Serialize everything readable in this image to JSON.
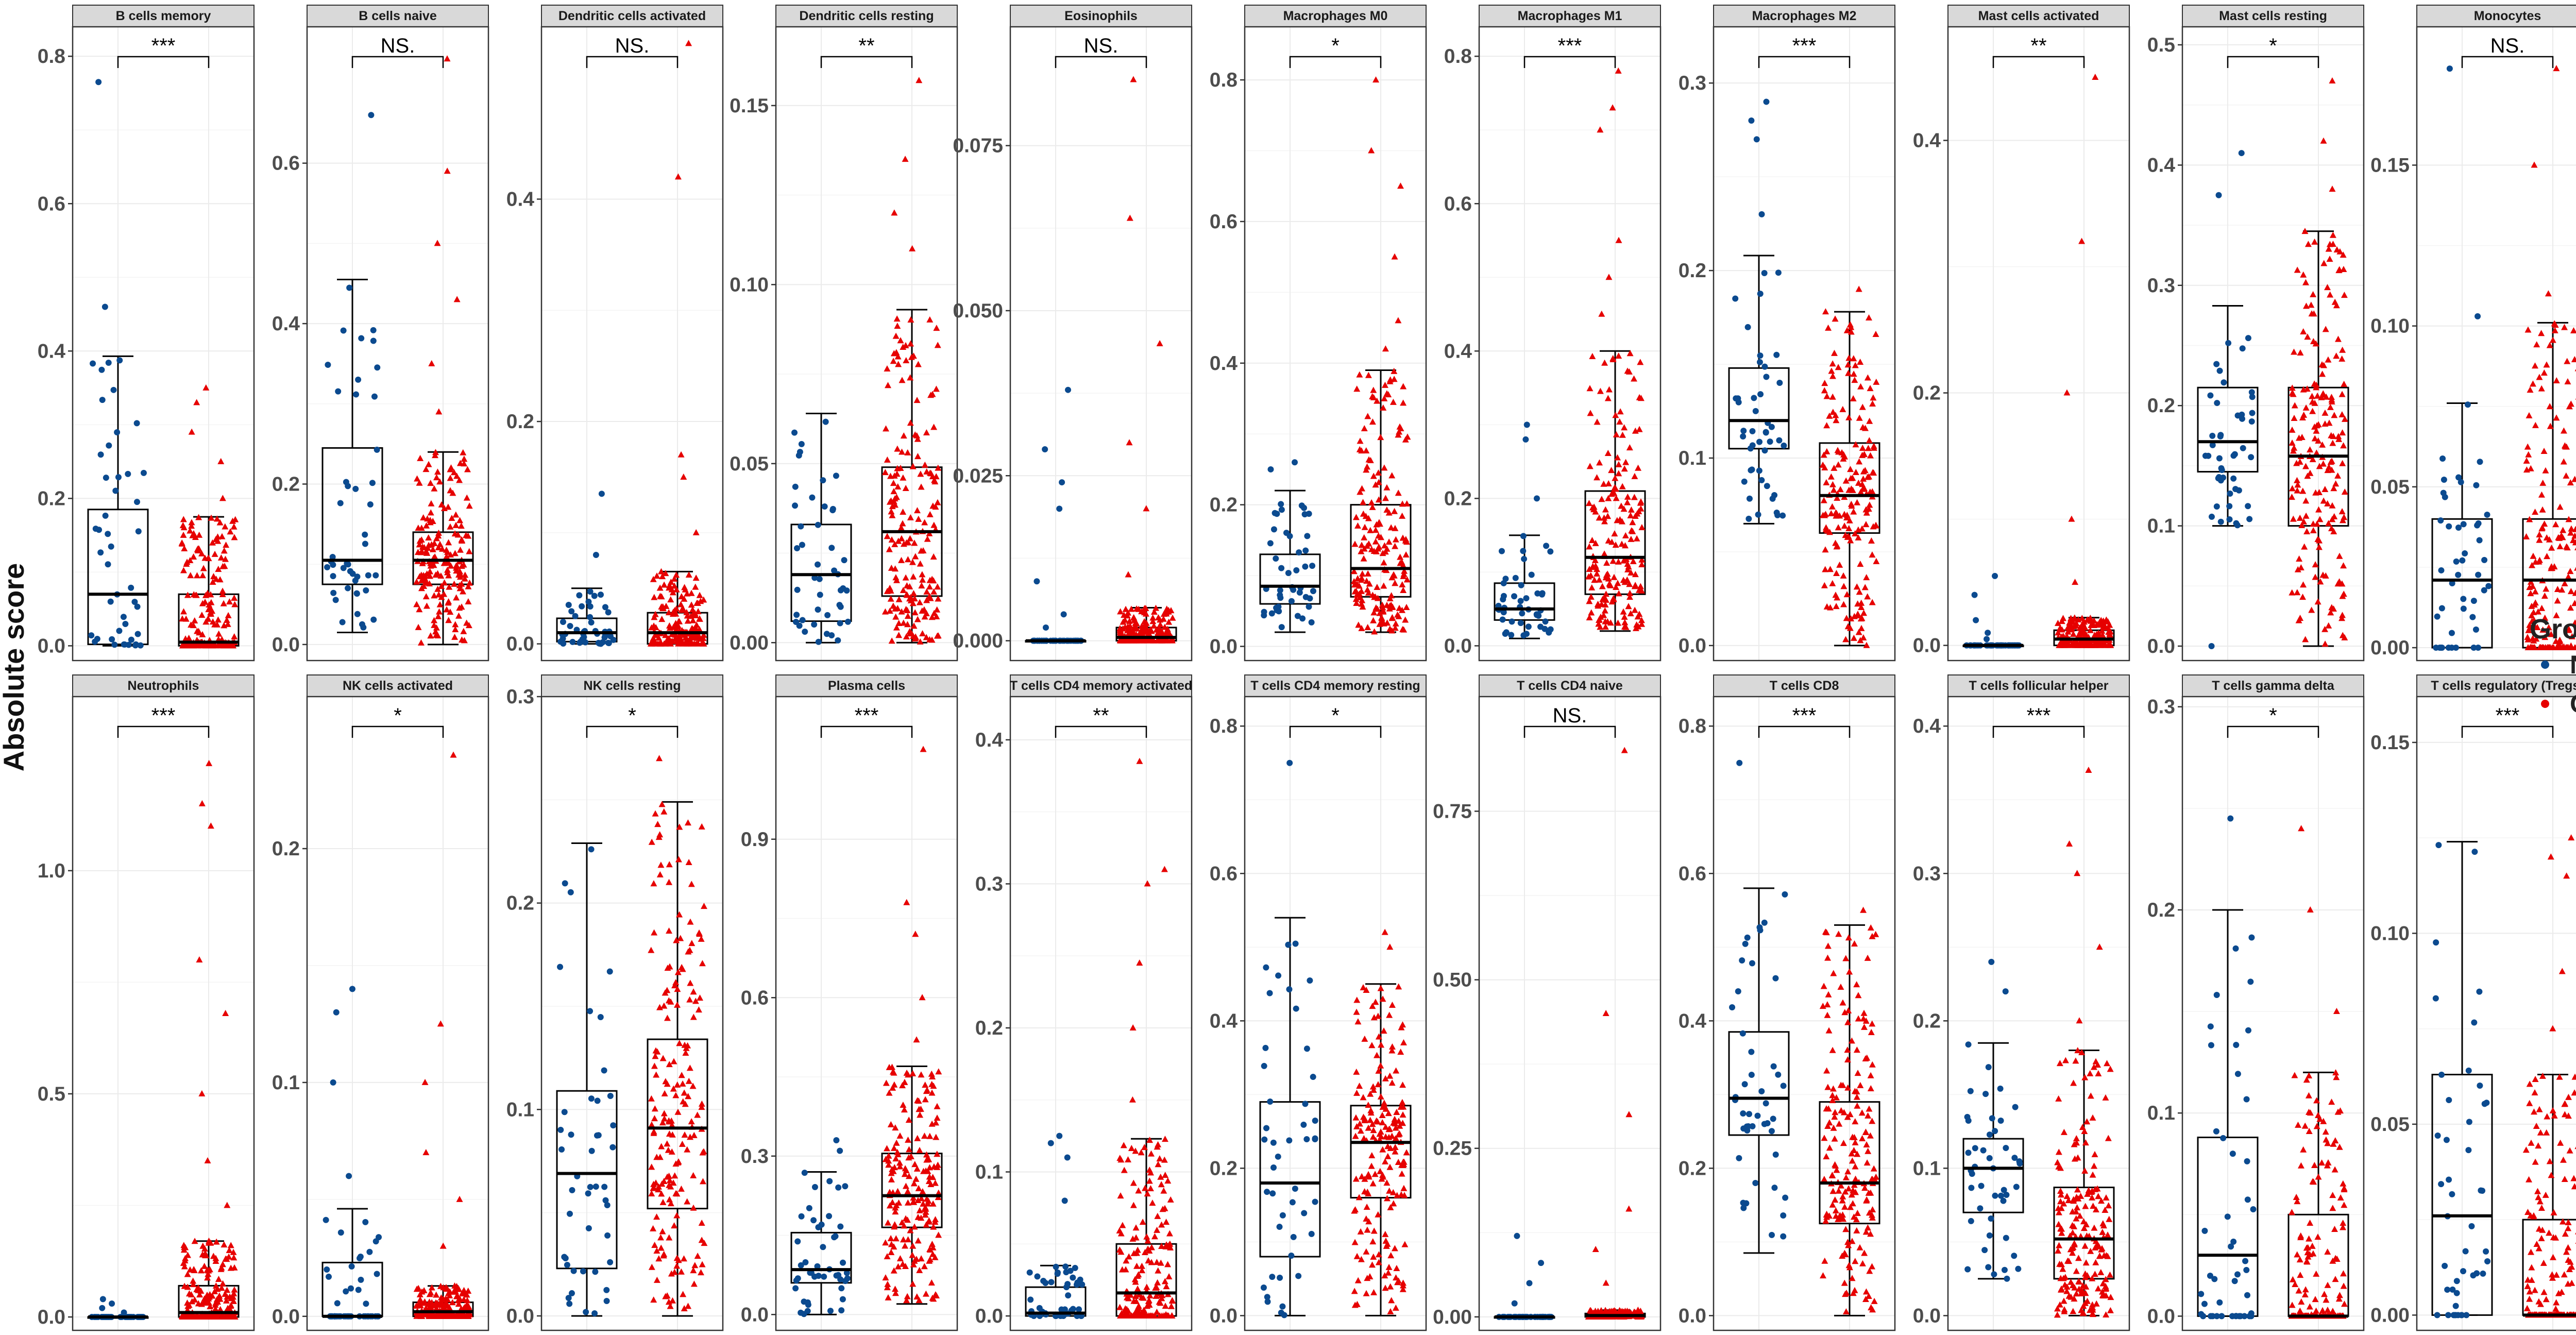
{
  "ylabel": "Absolute score",
  "legend": {
    "title": "Group",
    "items": [
      {
        "label": "NC",
        "color": "#0B4A8F"
      },
      {
        "label": "CD",
        "color": "#E60000"
      }
    ]
  },
  "colors": {
    "NC": "#0B4A8F",
    "CD": "#E60000",
    "strip": "#D9D9D9",
    "grid": "#EBEBEB"
  },
  "chart_data": [
    {
      "type": "box",
      "title": "B cells memory",
      "sig": "***",
      "ylim": [
        -0.02,
        0.84
      ],
      "ticks": [
        0.0,
        0.2,
        0.4,
        0.6,
        0.8
      ],
      "tickLabels": [
        "0.0",
        "0.2",
        "0.4",
        "0.6",
        "0.8"
      ],
      "groups": [
        {
          "name": "NC",
          "q1": 0.002,
          "median": 0.07,
          "q3": 0.185,
          "whiskerLow": 0.0,
          "whiskerHigh": 0.393,
          "outliers": [
            0.46,
            0.765
          ]
        },
        {
          "name": "CD",
          "q1": 0.0,
          "median": 0.005,
          "q3": 0.07,
          "whiskerLow": 0.0,
          "whiskerHigh": 0.175,
          "outliers": [
            0.2,
            0.25,
            0.29,
            0.33,
            0.35
          ]
        }
      ]
    },
    {
      "type": "box",
      "title": "B cells naive",
      "sig": "NS.",
      "ylim": [
        -0.02,
        0.77
      ],
      "ticks": [
        0.0,
        0.2,
        0.4,
        0.6
      ],
      "tickLabels": [
        "0.0",
        "0.2",
        "0.4",
        "0.6"
      ],
      "groups": [
        {
          "name": "NC",
          "q1": 0.075,
          "median": 0.105,
          "q3": 0.245,
          "whiskerLow": 0.015,
          "whiskerHigh": 0.455,
          "outliers": [
            0.66
          ]
        },
        {
          "name": "CD",
          "q1": 0.075,
          "median": 0.105,
          "q3": 0.14,
          "whiskerLow": 0.0,
          "whiskerHigh": 0.24,
          "outliers": [
            0.29,
            0.35,
            0.43,
            0.5,
            0.59,
            0.73
          ]
        }
      ]
    },
    {
      "type": "box",
      "title": "Dendritic cells activated",
      "sig": "NS.",
      "ylim": [
        -0.015,
        0.555
      ],
      "ticks": [
        0.0,
        0.2,
        0.4
      ],
      "tickLabels": [
        "0.0",
        "0.2",
        "0.4"
      ],
      "groups": [
        {
          "name": "NC",
          "q1": 0.002,
          "median": 0.01,
          "q3": 0.023,
          "whiskerLow": 0.0,
          "whiskerHigh": 0.05,
          "outliers": [
            0.08,
            0.135
          ]
        },
        {
          "name": "CD",
          "q1": 0.0,
          "median": 0.01,
          "q3": 0.028,
          "whiskerLow": 0.0,
          "whiskerHigh": 0.065,
          "outliers": [
            0.1,
            0.15,
            0.17,
            0.42,
            0.54
          ]
        }
      ]
    },
    {
      "type": "box",
      "title": "Dendritic cells resting",
      "sig": "**",
      "ylim": [
        -0.005,
        0.172
      ],
      "ticks": [
        0.0,
        0.05,
        0.1,
        0.15
      ],
      "tickLabels": [
        "0.00",
        "0.05",
        "0.10",
        "0.15"
      ],
      "groups": [
        {
          "name": "NC",
          "q1": 0.006,
          "median": 0.019,
          "q3": 0.033,
          "whiskerLow": 0.0,
          "whiskerHigh": 0.064,
          "outliers": []
        },
        {
          "name": "CD",
          "q1": 0.013,
          "median": 0.031,
          "q3": 0.049,
          "whiskerLow": 0.0,
          "whiskerHigh": 0.093,
          "outliers": [
            0.11,
            0.12,
            0.135,
            0.157
          ]
        }
      ]
    },
    {
      "type": "box",
      "title": "Eosinophils",
      "sig": "NS.",
      "ylim": [
        -0.003,
        0.093
      ],
      "ticks": [
        0.0,
        0.025,
        0.05,
        0.075
      ],
      "tickLabels": [
        "0.000",
        "0.025",
        "0.050",
        "0.075"
      ],
      "groups": [
        {
          "name": "NC",
          "q1": 0.0,
          "median": 0.0,
          "q3": 0.0,
          "whiskerLow": 0.0,
          "whiskerHigh": 0.0,
          "outliers": [
            0.002,
            0.004,
            0.009,
            0.02,
            0.024,
            0.029,
            0.038
          ]
        },
        {
          "name": "CD",
          "q1": 0.0,
          "median": 0.0005,
          "q3": 0.002,
          "whiskerLow": 0.0,
          "whiskerHigh": 0.005,
          "outliers": [
            0.01,
            0.02,
            0.03,
            0.045,
            0.064,
            0.085
          ]
        }
      ]
    },
    {
      "type": "box",
      "title": "Macrophages M0",
      "sig": "*",
      "ylim": [
        -0.02,
        0.875
      ],
      "ticks": [
        0.0,
        0.2,
        0.4,
        0.6,
        0.8
      ],
      "tickLabels": [
        "0.0",
        "0.2",
        "0.4",
        "0.6",
        "0.8"
      ],
      "groups": [
        {
          "name": "NC",
          "q1": 0.06,
          "median": 0.085,
          "q3": 0.13,
          "whiskerLow": 0.02,
          "whiskerHigh": 0.22,
          "outliers": [
            0.25,
            0.26
          ]
        },
        {
          "name": "CD",
          "q1": 0.07,
          "median": 0.11,
          "q3": 0.2,
          "whiskerLow": 0.02,
          "whiskerHigh": 0.39,
          "outliers": [
            0.42,
            0.46,
            0.55,
            0.65,
            0.7,
            0.8
          ]
        }
      ]
    },
    {
      "type": "box",
      "title": "Macrophages M1",
      "sig": "***",
      "ylim": [
        -0.02,
        0.84
      ],
      "ticks": [
        0.0,
        0.2,
        0.4,
        0.6,
        0.8
      ],
      "tickLabels": [
        "0.0",
        "0.2",
        "0.4",
        "0.6",
        "0.8"
      ],
      "groups": [
        {
          "name": "NC",
          "q1": 0.035,
          "median": 0.05,
          "q3": 0.085,
          "whiskerLow": 0.01,
          "whiskerHigh": 0.15,
          "outliers": [
            0.2,
            0.28,
            0.3
          ]
        },
        {
          "name": "CD",
          "q1": 0.07,
          "median": 0.12,
          "q3": 0.21,
          "whiskerLow": 0.02,
          "whiskerHigh": 0.4,
          "outliers": [
            0.45,
            0.5,
            0.55,
            0.7,
            0.73,
            0.78
          ]
        }
      ]
    },
    {
      "type": "box",
      "title": "Macrophages M2",
      "sig": "***",
      "ylim": [
        -0.008,
        0.33
      ],
      "ticks": [
        0.0,
        0.1,
        0.2,
        0.3
      ],
      "tickLabels": [
        "0.0",
        "0.1",
        "0.2",
        "0.3"
      ],
      "groups": [
        {
          "name": "NC",
          "q1": 0.105,
          "median": 0.12,
          "q3": 0.148,
          "whiskerLow": 0.065,
          "whiskerHigh": 0.208,
          "outliers": [
            0.23,
            0.27,
            0.28,
            0.29
          ]
        },
        {
          "name": "CD",
          "q1": 0.06,
          "median": 0.08,
          "q3": 0.108,
          "whiskerLow": 0.0,
          "whiskerHigh": 0.178,
          "outliers": [
            0.19
          ]
        }
      ]
    },
    {
      "type": "box",
      "title": "Mast cells activated",
      "sig": "**",
      "ylim": [
        -0.012,
        0.49
      ],
      "ticks": [
        0.0,
        0.2,
        0.4
      ],
      "tickLabels": [
        "0.0",
        "0.2",
        "0.4"
      ],
      "groups": [
        {
          "name": "NC",
          "q1": 0.0,
          "median": 0.0,
          "q3": 0.0,
          "whiskerLow": 0.0,
          "whiskerHigh": 0.0,
          "outliers": [
            0.005,
            0.01,
            0.02,
            0.04,
            0.055
          ]
        },
        {
          "name": "CD",
          "q1": 0.0,
          "median": 0.005,
          "q3": 0.012,
          "whiskerLow": 0.0,
          "whiskerHigh": 0.022,
          "outliers": [
            0.05,
            0.1,
            0.2,
            0.32,
            0.45
          ]
        }
      ]
    },
    {
      "type": "box",
      "title": "Mast cells resting",
      "sig": "*",
      "ylim": [
        -0.012,
        0.515
      ],
      "ticks": [
        0.0,
        0.1,
        0.2,
        0.3,
        0.4,
        0.5
      ],
      "tickLabels": [
        "0.0",
        "0.1",
        "0.2",
        "0.3",
        "0.4",
        "0.5"
      ],
      "groups": [
        {
          "name": "NC",
          "q1": 0.145,
          "median": 0.17,
          "q3": 0.215,
          "whiskerLow": 0.1,
          "whiskerHigh": 0.283,
          "outliers": [
            0.0,
            0.375,
            0.41
          ]
        },
        {
          "name": "CD",
          "q1": 0.1,
          "median": 0.158,
          "q3": 0.215,
          "whiskerLow": 0.0,
          "whiskerHigh": 0.345,
          "outliers": [
            0.38,
            0.42,
            0.47
          ]
        }
      ]
    },
    {
      "type": "box",
      "title": "Monocytes",
      "sig": "NS.",
      "ylim": [
        -0.004,
        0.193
      ],
      "ticks": [
        0.0,
        0.05,
        0.1,
        0.15
      ],
      "tickLabels": [
        "0.00",
        "0.05",
        "0.10",
        "0.15"
      ],
      "groups": [
        {
          "name": "NC",
          "q1": 0.0,
          "median": 0.021,
          "q3": 0.04,
          "whiskerLow": 0.0,
          "whiskerHigh": 0.076,
          "outliers": [
            0.103,
            0.18
          ]
        },
        {
          "name": "CD",
          "q1": 0.0,
          "median": 0.021,
          "q3": 0.04,
          "whiskerLow": 0.0,
          "whiskerHigh": 0.101,
          "outliers": [
            0.11,
            0.15,
            0.18
          ]
        }
      ]
    },
    {
      "type": "box",
      "title": "Neutrophils",
      "sig": "***",
      "ylim": [
        -0.03,
        1.39
      ],
      "ticks": [
        0.0,
        0.5,
        1.0
      ],
      "tickLabels": [
        "0.0",
        "0.5",
        "1.0"
      ],
      "groups": [
        {
          "name": "NC",
          "q1": 0.0,
          "median": 0.0,
          "q3": 0.0,
          "whiskerLow": 0.0,
          "whiskerHigh": 0.0,
          "outliers": [
            0.01,
            0.02,
            0.03,
            0.04
          ]
        },
        {
          "name": "CD",
          "q1": 0.0,
          "median": 0.01,
          "q3": 0.07,
          "whiskerLow": 0.0,
          "whiskerHigh": 0.17,
          "outliers": [
            0.25,
            0.35,
            0.5,
            0.68,
            0.8,
            1.1,
            1.15,
            1.24
          ]
        }
      ]
    },
    {
      "type": "box",
      "title": "NK cells activated",
      "sig": "*",
      "ylim": [
        -0.006,
        0.265
      ],
      "ticks": [
        0.0,
        0.1,
        0.2
      ],
      "tickLabels": [
        "0.0",
        "0.1",
        "0.2"
      ],
      "groups": [
        {
          "name": "NC",
          "q1": 0.0,
          "median": 0.0,
          "q3": 0.023,
          "whiskerLow": 0.0,
          "whiskerHigh": 0.046,
          "outliers": [
            0.06,
            0.1,
            0.13,
            0.14
          ]
        },
        {
          "name": "CD",
          "q1": 0.0,
          "median": 0.002,
          "q3": 0.006,
          "whiskerLow": 0.0,
          "whiskerHigh": 0.013,
          "outliers": [
            0.03,
            0.05,
            0.07,
            0.1,
            0.125,
            0.24
          ]
        }
      ]
    },
    {
      "type": "box",
      "title": "NK cells resting",
      "sig": "*",
      "ylim": [
        -0.007,
        0.3
      ],
      "ticks": [
        0.0,
        0.1,
        0.2,
        0.3
      ],
      "tickLabels": [
        "0.0",
        "0.1",
        "0.2",
        "0.3"
      ],
      "groups": [
        {
          "name": "NC",
          "q1": 0.023,
          "median": 0.069,
          "q3": 0.109,
          "whiskerLow": 0.0,
          "whiskerHigh": 0.229,
          "outliers": []
        },
        {
          "name": "CD",
          "q1": 0.052,
          "median": 0.091,
          "q3": 0.134,
          "whiskerLow": 0.0,
          "whiskerHigh": 0.249,
          "outliers": [
            0.27
          ]
        }
      ]
    },
    {
      "type": "box",
      "title": "Plasma cells",
      "sig": "***",
      "ylim": [
        -0.03,
        1.17
      ],
      "ticks": [
        0.0,
        0.3,
        0.6,
        0.9
      ],
      "tickLabels": [
        "0.0",
        "0.3",
        "0.6",
        "0.9"
      ],
      "groups": [
        {
          "name": "NC",
          "q1": 0.06,
          "median": 0.085,
          "q3": 0.155,
          "whiskerLow": 0.0,
          "whiskerHigh": 0.27,
          "outliers": [
            0.31,
            0.33
          ]
        },
        {
          "name": "CD",
          "q1": 0.165,
          "median": 0.225,
          "q3": 0.305,
          "whiskerLow": 0.02,
          "whiskerHigh": 0.47,
          "outliers": [
            0.52,
            0.6,
            0.72,
            0.78,
            1.07
          ]
        }
      ]
    },
    {
      "type": "box",
      "title": "T cells CD4 memory activated",
      "sig": "**",
      "ylim": [
        -0.01,
        0.43
      ],
      "ticks": [
        0.0,
        0.1,
        0.2,
        0.3,
        0.4
      ],
      "tickLabels": [
        "0.0",
        "0.1",
        "0.2",
        "0.3",
        "0.4"
      ],
      "groups": [
        {
          "name": "NC",
          "q1": 0.0,
          "median": 0.002,
          "q3": 0.02,
          "whiskerLow": 0.0,
          "whiskerHigh": 0.035,
          "outliers": [
            0.08,
            0.11,
            0.12,
            0.125
          ]
        },
        {
          "name": "CD",
          "q1": 0.0,
          "median": 0.016,
          "q3": 0.05,
          "whiskerLow": 0.0,
          "whiskerHigh": 0.123,
          "outliers": [
            0.15,
            0.2,
            0.245,
            0.3,
            0.31,
            0.385
          ]
        }
      ]
    },
    {
      "type": "box",
      "title": "T cells CD4 memory resting",
      "sig": "*",
      "ylim": [
        -0.02,
        0.84
      ],
      "ticks": [
        0.0,
        0.2,
        0.4,
        0.6,
        0.8
      ],
      "tickLabels": [
        "0.0",
        "0.2",
        "0.4",
        "0.6",
        "0.8"
      ],
      "groups": [
        {
          "name": "NC",
          "q1": 0.08,
          "median": 0.18,
          "q3": 0.29,
          "whiskerLow": 0.0,
          "whiskerHigh": 0.54,
          "outliers": [
            0.75
          ]
        },
        {
          "name": "CD",
          "q1": 0.16,
          "median": 0.235,
          "q3": 0.285,
          "whiskerLow": 0.0,
          "whiskerHigh": 0.45,
          "outliers": [
            0.5,
            0.52
          ]
        }
      ]
    },
    {
      "type": "box",
      "title": "T cells CD4 naive",
      "sig": "NS.",
      "ylim": [
        -0.02,
        0.92
      ],
      "ticks": [
        0.0,
        0.25,
        0.5,
        0.75
      ],
      "tickLabels": [
        "0.00",
        "0.25",
        "0.50",
        "0.75"
      ],
      "groups": [
        {
          "name": "NC",
          "q1": 0.0,
          "median": 0.0,
          "q3": 0.0,
          "whiskerLow": 0.0,
          "whiskerHigh": 0.0,
          "outliers": [
            0.02,
            0.05,
            0.08,
            0.12
          ]
        },
        {
          "name": "CD",
          "q1": 0.0,
          "median": 0.002,
          "q3": 0.005,
          "whiskerLow": 0.0,
          "whiskerHigh": 0.01,
          "outliers": [
            0.05,
            0.1,
            0.16,
            0.3,
            0.45,
            0.84
          ]
        }
      ]
    },
    {
      "type": "box",
      "title": "T cells CD8",
      "sig": "***",
      "ylim": [
        -0.02,
        0.84
      ],
      "ticks": [
        0.0,
        0.2,
        0.4,
        0.6,
        0.8
      ],
      "tickLabels": [
        "0.0",
        "0.2",
        "0.4",
        "0.6",
        "0.8"
      ],
      "groups": [
        {
          "name": "NC",
          "q1": 0.245,
          "median": 0.295,
          "q3": 0.385,
          "whiskerLow": 0.085,
          "whiskerHigh": 0.58,
          "outliers": [
            0.75
          ]
        },
        {
          "name": "CD",
          "q1": 0.125,
          "median": 0.18,
          "q3": 0.29,
          "whiskerLow": 0.0,
          "whiskerHigh": 0.53,
          "outliers": [
            0.55
          ]
        }
      ]
    },
    {
      "type": "box",
      "title": "T cells follicular helper",
      "sig": "***",
      "ylim": [
        -0.01,
        0.42
      ],
      "ticks": [
        0.0,
        0.1,
        0.2,
        0.3,
        0.4
      ],
      "tickLabels": [
        "0.0",
        "0.1",
        "0.2",
        "0.3",
        "0.4"
      ],
      "groups": [
        {
          "name": "NC",
          "q1": 0.07,
          "median": 0.1,
          "q3": 0.12,
          "whiskerLow": 0.025,
          "whiskerHigh": 0.185,
          "outliers": [
            0.22,
            0.24
          ]
        },
        {
          "name": "CD",
          "q1": 0.025,
          "median": 0.052,
          "q3": 0.087,
          "whiskerLow": 0.0,
          "whiskerHigh": 0.18,
          "outliers": [
            0.2,
            0.25,
            0.3,
            0.32,
            0.37
          ]
        }
      ]
    },
    {
      "type": "box",
      "title": "T cells gamma delta",
      "sig": "*",
      "ylim": [
        -0.007,
        0.305
      ],
      "ticks": [
        0.0,
        0.1,
        0.2,
        0.3
      ],
      "tickLabels": [
        "0.0",
        "0.1",
        "0.2",
        "0.3"
      ],
      "groups": [
        {
          "name": "NC",
          "q1": 0.0,
          "median": 0.03,
          "q3": 0.088,
          "whiskerLow": 0.0,
          "whiskerHigh": 0.2,
          "outliers": [
            0.245
          ]
        },
        {
          "name": "CD",
          "q1": 0.0,
          "median": 0.0,
          "q3": 0.05,
          "whiskerLow": 0.0,
          "whiskerHigh": 0.12,
          "outliers": [
            0.15,
            0.2,
            0.24
          ]
        }
      ]
    },
    {
      "type": "box",
      "title": "T cells regulatory (Tregs)",
      "sig": "***",
      "ylim": [
        -0.004,
        0.162
      ],
      "ticks": [
        0.0,
        0.05,
        0.1,
        0.15
      ],
      "tickLabels": [
        "0.00",
        "0.05",
        "0.10",
        "0.15"
      ],
      "groups": [
        {
          "name": "NC",
          "q1": 0.0,
          "median": 0.026,
          "q3": 0.063,
          "whiskerLow": 0.0,
          "whiskerHigh": 0.124,
          "outliers": []
        },
        {
          "name": "CD",
          "q1": 0.0,
          "median": 0.0,
          "q3": 0.025,
          "whiskerLow": 0.0,
          "whiskerHigh": 0.063,
          "outliers": [
            0.075,
            0.09,
            0.115,
            0.12,
            0.125
          ]
        }
      ]
    }
  ]
}
